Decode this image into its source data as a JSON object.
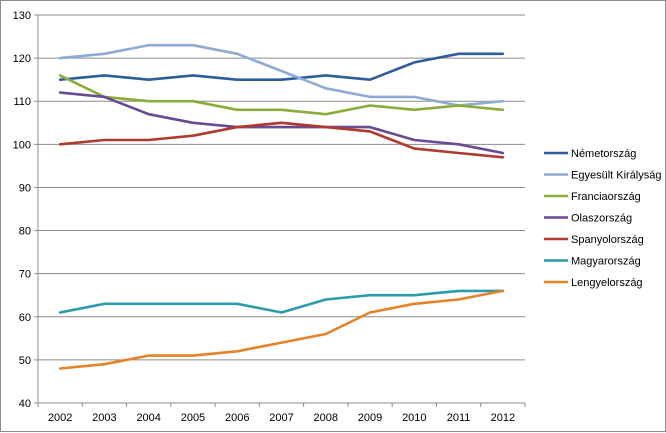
{
  "chart_data": {
    "type": "line",
    "title": "",
    "xlabel": "",
    "ylabel": "",
    "x": [
      "2002",
      "2003",
      "2004",
      "2005",
      "2006",
      "2007",
      "2008",
      "2009",
      "2010",
      "2011",
      "2012"
    ],
    "ylim": [
      40,
      130
    ],
    "yticks": [
      40,
      50,
      60,
      70,
      80,
      90,
      100,
      110,
      120,
      130
    ],
    "grid": true,
    "legend_position": "right",
    "series": [
      {
        "name": "Németország",
        "color": "#2e5d9e",
        "values": [
          115,
          116,
          115,
          116,
          115,
          115,
          116,
          115,
          119,
          121,
          121
        ]
      },
      {
        "name": "Egyesült Királyság",
        "color": "#8eaad6",
        "values": [
          120,
          121,
          123,
          123,
          121,
          117,
          113,
          111,
          111,
          109,
          110
        ]
      },
      {
        "name": "Franciaország",
        "color": "#8aad3a",
        "values": [
          116,
          111,
          110,
          110,
          108,
          108,
          107,
          109,
          108,
          109,
          108
        ]
      },
      {
        "name": "Olaszország",
        "color": "#6a4a92",
        "values": [
          112,
          111,
          107,
          105,
          104,
          104,
          104,
          104,
          101,
          100,
          98
        ]
      },
      {
        "name": "Spanyolország",
        "color": "#b03a2e",
        "values": [
          100,
          101,
          101,
          102,
          104,
          105,
          104,
          103,
          99,
          98,
          97
        ]
      },
      {
        "name": "Magyarország",
        "color": "#2e9aae",
        "values": [
          61,
          63,
          63,
          63,
          63,
          61,
          64,
          65,
          65,
          66,
          66
        ]
      },
      {
        "name": "Lengyelország",
        "color": "#e8822a",
        "values": [
          48,
          49,
          51,
          51,
          52,
          54,
          56,
          61,
          63,
          64,
          66
        ]
      }
    ]
  }
}
